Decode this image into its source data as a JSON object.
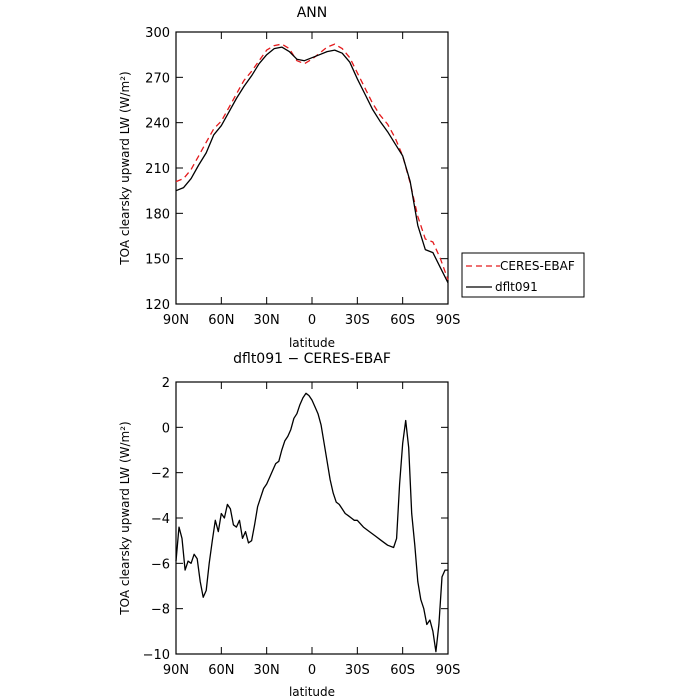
{
  "chart_data": [
    {
      "type": "line",
      "title": "ANN",
      "xlabel": "latitude",
      "ylabel": "TOA clearsky upward LW (W/m²)",
      "xlim": [
        90,
        -90
      ],
      "ylim": [
        120,
        300
      ],
      "xticks": [
        90,
        60,
        30,
        0,
        -30,
        -60,
        -90
      ],
      "xtick_labels": [
        "90N",
        "60N",
        "30N",
        "0",
        "30S",
        "60S",
        "90S"
      ],
      "yticks": [
        120,
        150,
        180,
        210,
        240,
        270,
        300
      ],
      "ytick_labels": [
        "120",
        "150",
        "180",
        "210",
        "240",
        "270",
        "300"
      ],
      "legend_placement": "right-outside",
      "series": [
        {
          "name": "CERES-EBAF",
          "color": "#e41a1c",
          "dash": "dashed",
          "x": [
            90,
            85,
            80,
            75,
            70,
            65,
            60,
            55,
            50,
            45,
            40,
            35,
            30,
            25,
            20,
            15,
            10,
            5,
            0,
            -5,
            -10,
            -15,
            -20,
            -25,
            -30,
            -35,
            -40,
            -45,
            -50,
            -55,
            -60,
            -65,
            -70,
            -75,
            -80,
            -85,
            -90
          ],
          "y": [
            201,
            203,
            209,
            218,
            227,
            236,
            241,
            250,
            259,
            268,
            274,
            281,
            288,
            291,
            292,
            289,
            281,
            279,
            282,
            286,
            290,
            292,
            289,
            283,
            273,
            263,
            253,
            245,
            239,
            230,
            218,
            200,
            178,
            163,
            161,
            150,
            136
          ]
        },
        {
          "name": "dflt091",
          "color": "#000000",
          "dash": "solid",
          "x": [
            90,
            85,
            80,
            75,
            70,
            65,
            60,
            55,
            50,
            45,
            40,
            35,
            30,
            25,
            20,
            15,
            10,
            5,
            0,
            -5,
            -10,
            -15,
            -20,
            -25,
            -30,
            -35,
            -40,
            -45,
            -50,
            -55,
            -60,
            -65,
            -70,
            -75,
            -80,
            -85,
            -90
          ],
          "y": [
            195,
            197,
            203,
            212,
            220,
            232,
            238,
            247,
            256,
            264,
            271,
            279,
            285,
            289,
            290,
            287,
            282,
            281,
            283,
            285,
            287,
            288,
            286,
            280,
            269,
            259,
            249,
            241,
            234,
            226,
            218,
            201,
            172,
            156,
            154,
            144,
            134
          ]
        }
      ]
    },
    {
      "type": "line",
      "title": "dflt091 − CERES-EBAF",
      "xlabel": "latitude",
      "ylabel": "TOA clearsky upward LW (W/m²)",
      "xlim": [
        90,
        -90
      ],
      "ylim": [
        -10,
        2
      ],
      "xticks": [
        90,
        60,
        30,
        0,
        -30,
        -60,
        -90
      ],
      "xtick_labels": [
        "90N",
        "60N",
        "30N",
        "0",
        "30S",
        "60S",
        "90S"
      ],
      "yticks": [
        -10,
        -8,
        -6,
        -4,
        -2,
        0,
        2
      ],
      "ytick_labels": [
        "−10",
        "−8",
        "−6",
        "−4",
        "−2",
        "0",
        "2"
      ],
      "series": [
        {
          "color": "#000000",
          "dash": "solid",
          "x": [
            90,
            88,
            86,
            84,
            82,
            80,
            78,
            76,
            74,
            72,
            70,
            68,
            66,
            64,
            62,
            60,
            58,
            56,
            54,
            52,
            50,
            48,
            46,
            44,
            42,
            40,
            38,
            36,
            34,
            32,
            30,
            28,
            26,
            24,
            22,
            20,
            18,
            16,
            14,
            12,
            10,
            8,
            6,
            4,
            2,
            0,
            -2,
            -4,
            -6,
            -8,
            -10,
            -12,
            -14,
            -16,
            -18,
            -20,
            -22,
            -24,
            -26,
            -28,
            -30,
            -34,
            -38,
            -42,
            -46,
            -50,
            -54,
            -56,
            -58,
            -60,
            -62,
            -64,
            -66,
            -68,
            -70,
            -72,
            -74,
            -76,
            -78,
            -80,
            -82,
            -84,
            -86,
            -88,
            -90
          ],
          "y": [
            -5.9,
            -4.4,
            -4.9,
            -6.3,
            -5.9,
            -6.0,
            -5.6,
            -5.8,
            -6.8,
            -7.5,
            -7.2,
            -6.0,
            -5.0,
            -4.1,
            -4.6,
            -3.8,
            -4.0,
            -3.4,
            -3.6,
            -4.3,
            -4.4,
            -4.1,
            -4.9,
            -4.6,
            -5.1,
            -5.0,
            -4.3,
            -3.5,
            -3.1,
            -2.7,
            -2.5,
            -2.2,
            -1.9,
            -1.6,
            -1.5,
            -1.0,
            -0.6,
            -0.4,
            -0.1,
            0.4,
            0.6,
            1.0,
            1.3,
            1.5,
            1.4,
            1.2,
            0.9,
            0.6,
            0.1,
            -0.7,
            -1.5,
            -2.3,
            -2.9,
            -3.3,
            -3.4,
            -3.6,
            -3.8,
            -3.9,
            -4.0,
            -4.1,
            -4.1,
            -4.4,
            -4.6,
            -4.8,
            -5.0,
            -5.2,
            -5.3,
            -4.9,
            -2.5,
            -0.7,
            0.3,
            -0.9,
            -3.8,
            -5.2,
            -6.8,
            -7.6,
            -8.0,
            -8.7,
            -8.5,
            -9.0,
            -9.9,
            -8.7,
            -6.6,
            -6.3,
            -6.3
          ]
        }
      ]
    }
  ]
}
